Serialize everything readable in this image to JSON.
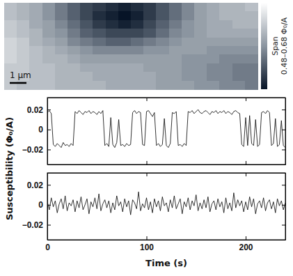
{
  "chart_data": [
    {
      "type": "heatmap",
      "cells": [
        [
          0.62,
          0.61,
          0.6,
          0.58,
          0.56,
          0.54,
          0.52,
          0.51,
          0.5,
          0.49,
          0.5,
          0.51,
          0.53,
          0.55,
          0.57,
          0.59,
          0.6,
          0.61,
          0.61,
          0.62
        ],
        [
          0.62,
          0.61,
          0.6,
          0.58,
          0.56,
          0.54,
          0.52,
          0.5,
          0.49,
          0.48,
          0.49,
          0.51,
          0.53,
          0.55,
          0.57,
          0.59,
          0.6,
          0.61,
          0.61,
          0.61
        ],
        [
          0.63,
          0.62,
          0.6,
          0.59,
          0.57,
          0.55,
          0.53,
          0.51,
          0.5,
          0.49,
          0.5,
          0.52,
          0.54,
          0.56,
          0.58,
          0.59,
          0.6,
          0.6,
          0.61,
          0.61
        ],
        [
          0.63,
          0.62,
          0.61,
          0.59,
          0.58,
          0.56,
          0.54,
          0.53,
          0.52,
          0.52,
          0.52,
          0.53,
          0.55,
          0.57,
          0.58,
          0.59,
          0.6,
          0.6,
          0.6,
          0.6
        ],
        [
          0.64,
          0.63,
          0.61,
          0.6,
          0.59,
          0.57,
          0.56,
          0.55,
          0.54,
          0.54,
          0.55,
          0.56,
          0.57,
          0.58,
          0.59,
          0.59,
          0.59,
          0.59,
          0.59,
          0.59
        ],
        [
          0.64,
          0.63,
          0.62,
          0.61,
          0.6,
          0.59,
          0.58,
          0.57,
          0.57,
          0.57,
          0.57,
          0.58,
          0.58,
          0.59,
          0.59,
          0.59,
          0.58,
          0.58,
          0.58,
          0.58
        ],
        [
          0.64,
          0.63,
          0.62,
          0.61,
          0.61,
          0.6,
          0.59,
          0.59,
          0.59,
          0.59,
          0.59,
          0.59,
          0.59,
          0.59,
          0.58,
          0.58,
          0.58,
          0.57,
          0.57,
          0.57
        ],
        [
          0.63,
          0.63,
          0.62,
          0.62,
          0.61,
          0.61,
          0.6,
          0.6,
          0.6,
          0.6,
          0.6,
          0.59,
          0.59,
          0.59,
          0.58,
          0.58,
          0.57,
          0.57,
          0.56,
          0.56
        ],
        [
          0.63,
          0.63,
          0.62,
          0.62,
          0.61,
          0.61,
          0.61,
          0.6,
          0.6,
          0.6,
          0.6,
          0.6,
          0.59,
          0.59,
          0.58,
          0.58,
          0.57,
          0.57,
          0.56,
          0.56
        ],
        [
          0.63,
          0.62,
          0.62,
          0.62,
          0.61,
          0.61,
          0.61,
          0.61,
          0.6,
          0.6,
          0.6,
          0.6,
          0.59,
          0.59,
          0.59,
          0.58,
          0.58,
          0.57,
          0.57,
          0.56
        ]
      ],
      "zlim": [
        0.48,
        0.68
      ],
      "colorbar_label": [
        "Span",
        "0.48–0.68 Φ₀/A"
      ],
      "scale_bar_label": "1 µm"
    },
    {
      "type": "line",
      "ylabel": "Susceptibility (Φ₀/A)",
      "x": [
        0,
        2,
        4,
        6,
        8,
        10,
        12,
        14,
        16,
        18,
        20,
        22,
        24,
        26,
        28,
        30,
        32,
        34,
        36,
        38,
        40,
        42,
        44,
        46,
        48,
        50,
        52,
        54,
        56,
        58,
        60,
        62,
        64,
        66,
        68,
        70,
        72,
        74,
        76,
        78,
        80,
        82,
        84,
        86,
        88,
        90,
        92,
        94,
        96,
        98,
        100,
        102,
        104,
        106,
        108,
        110,
        112,
        114,
        116,
        118,
        120,
        122,
        124,
        126,
        128,
        130,
        132,
        134,
        136,
        138,
        140,
        142,
        144,
        146,
        148,
        150,
        152,
        154,
        156,
        158,
        160,
        162,
        164,
        166,
        168,
        170,
        172,
        174,
        176,
        178,
        180,
        182,
        184,
        186,
        188,
        190,
        192,
        194,
        196,
        198,
        200,
        202,
        204,
        206,
        208,
        210,
        212,
        214,
        216,
        218,
        220,
        222,
        224,
        226,
        228,
        230,
        232,
        234,
        236,
        238,
        240
      ],
      "series": [
        {
          "color": "#000000",
          "values": [
            0.017,
            0.019,
            0.016,
            -0.015,
            -0.017,
            -0.014,
            -0.016,
            -0.018,
            -0.013,
            -0.016,
            -0.015,
            -0.017,
            -0.014,
            -0.016,
            0.018,
            0.016,
            0.019,
            0.017,
            0.015,
            0.018,
            0.017,
            0.019,
            0.016,
            0.018,
            0.017,
            0.015,
            0.018,
            0.016,
            0.019,
            -0.016,
            -0.014,
            -0.017,
            0.012,
            -0.015,
            -0.018,
            -0.013,
            0.01,
            -0.016,
            -0.015,
            -0.017,
            -0.014,
            -0.016,
            -0.015,
            0.017,
            0.019,
            0.016,
            0.018,
            0.017,
            -0.015,
            -0.016,
            0.018,
            0.019,
            0.016,
            0.013,
            0.017,
            -0.016,
            -0.014,
            -0.017,
            -0.015,
            0.011,
            -0.016,
            -0.018,
            -0.014,
            0.017,
            0.016,
            0.018,
            -0.016,
            -0.015,
            -0.017,
            -0.014,
            -0.016,
            0.018,
            0.017,
            0.019,
            0.016,
            0.018,
            0.02,
            0.017,
            0.016,
            0.018,
            0.019,
            0.017,
            0.015,
            0.018,
            0.017,
            0.019,
            0.016,
            0.018,
            0.017,
            0.019,
            0.016,
            0.018,
            0.017,
            0.015,
            0.018,
            0.019,
            0.017,
            0.016,
            -0.015,
            -0.017,
            0.012,
            -0.016,
            0.014,
            -0.014,
            -0.016,
            0.01,
            -0.017,
            -0.015,
            0.017,
            0.018,
            0.016,
            0.019,
            0.017,
            -0.016,
            -0.014,
            0.011,
            -0.017,
            -0.015,
            0.009,
            -0.016,
            -0.018
          ]
        }
      ],
      "xlim": [
        0,
        240
      ],
      "xticks": [
        0,
        100,
        200
      ],
      "ylim": [
        -0.035,
        0.032
      ],
      "yticks": [
        0.02,
        0,
        {
          "value": -0.02,
          "label": "−0.02"
        }
      ],
      "tick_labels": "y"
    },
    {
      "type": "line",
      "xlabel": "Time (s)",
      "x": [
        0,
        2,
        4,
        6,
        8,
        10,
        12,
        14,
        16,
        18,
        20,
        22,
        24,
        26,
        28,
        30,
        32,
        34,
        36,
        38,
        40,
        42,
        44,
        46,
        48,
        50,
        52,
        54,
        56,
        58,
        60,
        62,
        64,
        66,
        68,
        70,
        72,
        74,
        76,
        78,
        80,
        82,
        84,
        86,
        88,
        90,
        92,
        94,
        96,
        98,
        100,
        102,
        104,
        106,
        108,
        110,
        112,
        114,
        116,
        118,
        120,
        122,
        124,
        126,
        128,
        130,
        132,
        134,
        136,
        138,
        140,
        142,
        144,
        146,
        148,
        150,
        152,
        154,
        156,
        158,
        160,
        162,
        164,
        166,
        168,
        170,
        172,
        174,
        176,
        178,
        180,
        182,
        184,
        186,
        188,
        190,
        192,
        194,
        196,
        198,
        200,
        202,
        204,
        206,
        208,
        210,
        212,
        214,
        216,
        218,
        220,
        222,
        224,
        226,
        228,
        230,
        232,
        234,
        236,
        238,
        240
      ],
      "series": [
        {
          "color": "#000000",
          "values": [
            0.003,
            -0.005,
            0.007,
            -0.002,
            0.004,
            -0.008,
            0.001,
            0.006,
            -0.004,
            0.009,
            -0.006,
            0.002,
            -0.001,
            0.005,
            -0.007,
            0.004,
            -0.003,
            0.008,
            -0.005,
            0.0,
            0.006,
            -0.009,
            0.003,
            -0.002,
            0.007,
            -0.004,
            0.011,
            -0.006,
            0.001,
            0.005,
            -0.003,
            0.004,
            -0.008,
            0.002,
            -0.005,
            0.009,
            -0.001,
            0.003,
            -0.007,
            0.006,
            -0.002,
            0.004,
            -0.01,
            0.005,
            0.002,
            -0.004,
            0.013,
            -0.006,
            0.001,
            -0.003,
            0.007,
            -0.005,
            0.003,
            -0.008,
            0.006,
            -0.002,
            0.004,
            -0.006,
            0.008,
            -0.001,
            0.002,
            -0.007,
            0.005,
            -0.003,
            0.009,
            -0.004,
            0.001,
            0.006,
            -0.009,
            0.003,
            -0.002,
            0.007,
            -0.005,
            0.004,
            -0.001,
            0.01,
            -0.006,
            0.002,
            -0.004,
            0.005,
            -0.003,
            0.008,
            -0.007,
            0.001,
            0.004,
            -0.005,
            0.006,
            -0.002,
            0.003,
            -0.008,
            0.007,
            -0.004,
            0.002,
            -0.006,
            0.012,
            -0.003,
            0.005,
            -0.001,
            0.004,
            -0.007,
            0.003,
            -0.005,
            0.008,
            -0.002,
            0.006,
            -0.009,
            0.001,
            0.004,
            -0.003,
            0.007,
            -0.006,
            0.002,
            0.005,
            -0.004,
            0.003,
            -0.008,
            0.006,
            -0.001,
            0.004,
            -0.005,
            0.002
          ]
        }
      ],
      "xlim": [
        0,
        240
      ],
      "xticks": [
        0,
        100,
        200
      ],
      "ylim": [
        -0.035,
        0.032
      ],
      "yticks": [
        0.02,
        0,
        {
          "value": -0.02,
          "label": "−0.02"
        }
      ]
    }
  ]
}
